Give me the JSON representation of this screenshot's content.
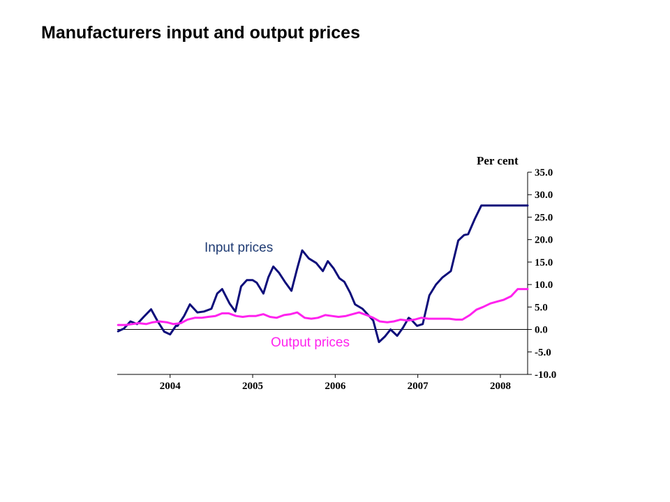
{
  "title": "Manufacturers input and output prices",
  "colors": {
    "input": "#0d0d7a",
    "output": "#ff22ee",
    "input_label": "#1f3b73",
    "output_label": "#ff22ee",
    "axis": "#000000"
  },
  "chart_data": {
    "type": "line",
    "title": "Manufacturers input and output prices",
    "xlabel": "",
    "ylabel": "Per cent",
    "ylim": [
      -10,
      35
    ],
    "y_axis_position": "right",
    "grid": false,
    "legend": "inline labels",
    "yticks": [
      "35.0",
      "30.0",
      "25.0",
      "20.0",
      "15.0",
      "10.0",
      "5.0",
      "0.0",
      "-5.0",
      "-10.0"
    ],
    "ytick_values": [
      35,
      30,
      25,
      20,
      15,
      10,
      5,
      0,
      -5,
      -10
    ],
    "xticks": [
      "2004",
      "2005",
      "2006",
      "2007",
      "2008"
    ],
    "xtick_values": [
      2004.0,
      2005.0,
      2006.0,
      2007.0,
      2008.0
    ],
    "xlim": [
      2003.36,
      2008.33
    ],
    "series": [
      {
        "name": "Input prices",
        "x": [
          2003.37,
          2003.44,
          2003.52,
          2003.6,
          2003.68,
          2003.77,
          2003.85,
          2003.93,
          2004.0,
          2004.07,
          2004.09,
          2004.17,
          2004.24,
          2004.33,
          2004.41,
          2004.5,
          2004.57,
          2004.63,
          2004.72,
          2004.79,
          2004.86,
          2004.93,
          2005.0,
          2005.05,
          2005.13,
          2005.19,
          2005.25,
          2005.32,
          2005.39,
          2005.47,
          2005.54,
          2005.6,
          2005.68,
          2005.77,
          2005.85,
          2005.91,
          2005.98,
          2006.05,
          2006.11,
          2006.18,
          2006.24,
          2006.33,
          2006.39,
          2006.46,
          2006.53,
          2006.6,
          2006.67,
          2006.75,
          2006.82,
          2006.89,
          2006.92,
          2006.99,
          2007.06,
          2007.14,
          2007.22,
          2007.3,
          2007.4,
          2007.49,
          2007.56,
          2007.61,
          2007.69,
          2007.77,
          2007.84,
          2007.92,
          2007.99,
          2008.07,
          2008.15,
          2008.23,
          2008.33
        ],
        "values": [
          -0.4,
          0.2,
          1.8,
          1.2,
          2.8,
          4.5,
          1.8,
          -0.5,
          -1.1,
          0.8,
          0.8,
          3.0,
          5.6,
          3.8,
          4.0,
          4.6,
          8.0,
          9.0,
          5.8,
          4.0,
          9.6,
          11.0,
          11.0,
          10.4,
          8.0,
          11.6,
          14.0,
          12.6,
          10.6,
          8.6,
          13.6,
          17.6,
          15.8,
          14.8,
          13.0,
          15.2,
          13.6,
          11.4,
          10.6,
          8.2,
          5.6,
          4.6,
          3.4,
          2.0,
          -2.8,
          -1.6,
          0.0,
          -1.4,
          0.4,
          2.6,
          2.2,
          0.8,
          1.2,
          7.6,
          10.0,
          11.6,
          13.0,
          19.8,
          21.0,
          21.2,
          24.6,
          27.6,
          27.6,
          27.6,
          27.6,
          27.6,
          27.6,
          27.6,
          27.6
        ]
      },
      {
        "name": "Output prices",
        "x": [
          2003.37,
          2003.46,
          2003.54,
          2003.62,
          2003.71,
          2003.79,
          2003.87,
          2003.96,
          2004.04,
          2004.13,
          2004.21,
          2004.3,
          2004.38,
          2004.46,
          2004.55,
          2004.63,
          2004.71,
          2004.8,
          2004.88,
          2004.96,
          2005.04,
          2005.13,
          2005.21,
          2005.29,
          2005.38,
          2005.46,
          2005.54,
          2005.63,
          2005.71,
          2005.79,
          2005.88,
          2005.96,
          2006.04,
          2006.13,
          2006.21,
          2006.29,
          2006.38,
          2006.46,
          2006.54,
          2006.63,
          2006.71,
          2006.79,
          2006.88,
          2006.96,
          2007.04,
          2007.13,
          2007.21,
          2007.29,
          2007.38,
          2007.46,
          2007.54,
          2007.63,
          2007.71,
          2007.79,
          2007.88,
          2007.96,
          2008.04,
          2008.13,
          2008.21,
          2008.33
        ],
        "values": [
          1.0,
          1.0,
          1.2,
          1.4,
          1.2,
          1.6,
          1.8,
          1.6,
          1.2,
          1.4,
          2.2,
          2.6,
          2.6,
          2.8,
          3.0,
          3.6,
          3.6,
          3.0,
          2.8,
          3.0,
          3.0,
          3.4,
          2.8,
          2.6,
          3.2,
          3.4,
          3.8,
          2.6,
          2.4,
          2.6,
          3.2,
          3.0,
          2.8,
          3.0,
          3.4,
          3.8,
          3.2,
          2.6,
          1.8,
          1.6,
          1.8,
          2.2,
          2.0,
          2.2,
          2.6,
          2.4,
          2.4,
          2.4,
          2.4,
          2.2,
          2.2,
          3.2,
          4.4,
          5.0,
          5.8,
          6.2,
          6.6,
          7.4,
          9.0,
          9.0
        ]
      }
    ]
  }
}
